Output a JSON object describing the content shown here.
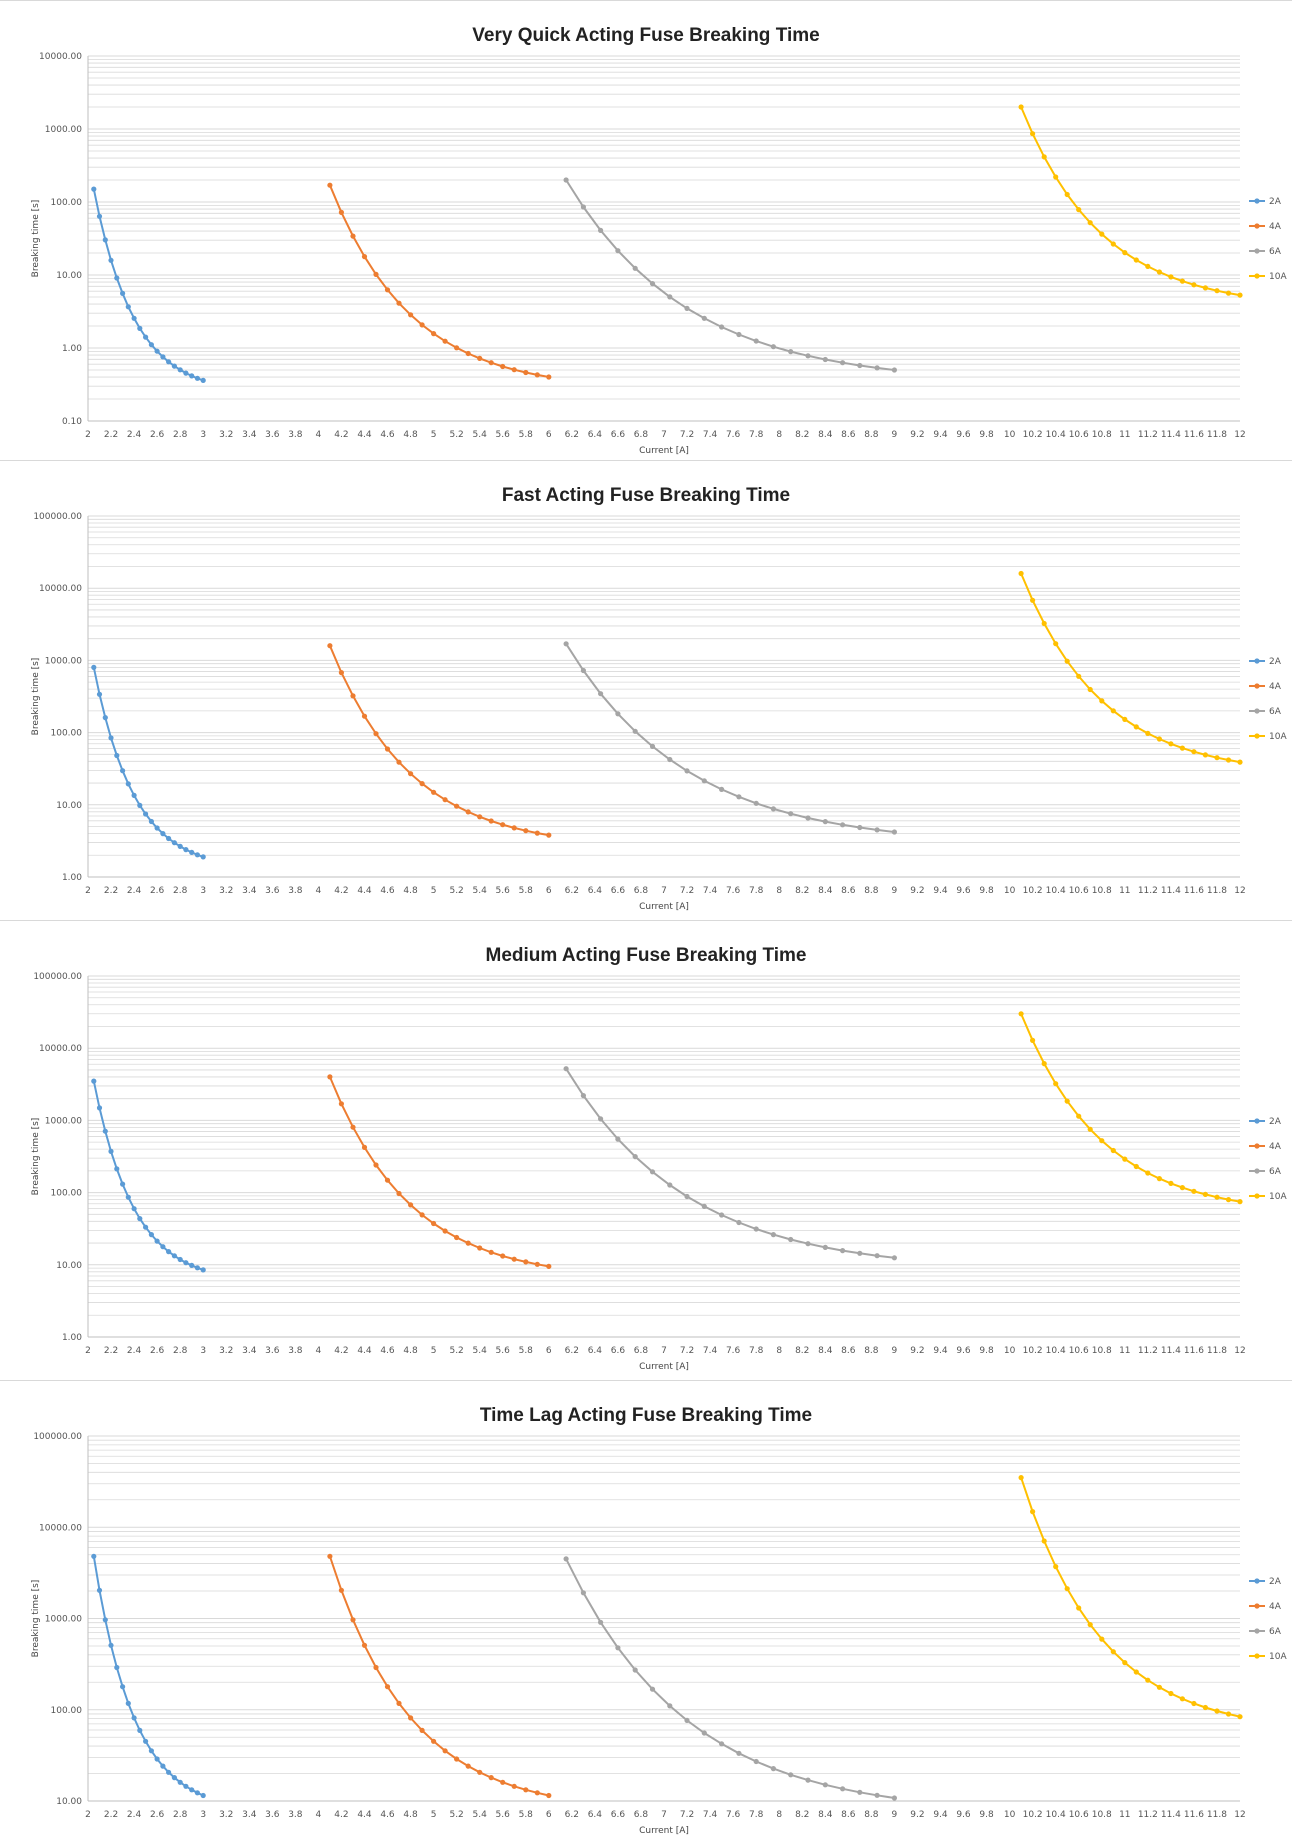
{
  "colors": {
    "2A": "#5b9bd5",
    "4A": "#ed7d31",
    "6A": "#a5a5a5",
    "10A": "#ffc000",
    "grid": "#d9d9d9"
  },
  "chart_data": [
    {
      "type": "line",
      "title": "Very Quick Acting Fuse Breaking Time",
      "xlabel": "Current [A]",
      "ylabel": "Breaking time [s]",
      "yscale": "log",
      "ylim": [
        0.1,
        10000
      ],
      "xlim": [
        2,
        12
      ],
      "yticks": [
        "0.10",
        "1.00",
        "10.00",
        "100.00",
        "1000.00",
        "10000.00"
      ],
      "xticks": [
        "2",
        "2.2",
        "2.4",
        "2.6",
        "2.8",
        "3",
        "3.2",
        "3.4",
        "3.6",
        "3.8",
        "4",
        "4.2",
        "4.4",
        "4.6",
        "4.8",
        "5",
        "5.2",
        "5.4",
        "5.6",
        "5.8",
        "6",
        "6.2",
        "6.4",
        "6.6",
        "6.8",
        "7",
        "7.2",
        "7.4",
        "7.6",
        "7.8",
        "8",
        "8.2",
        "8.4",
        "8.6",
        "8.8",
        "9",
        "9.2",
        "9.4",
        "9.6",
        "9.8",
        "10",
        "10.2",
        "10.4",
        "10.6",
        "10.8",
        "11",
        "11.2",
        "11.4",
        "11.6",
        "11.8",
        "12"
      ],
      "legend_position": "right",
      "grid": true,
      "series": [
        {
          "name": "2A",
          "x_start": 2.05,
          "x_end": 3.0,
          "y_start": 150,
          "y_end": 0.36,
          "points": 20
        },
        {
          "name": "4A",
          "x_start": 4.1,
          "x_end": 6.0,
          "y_start": 170,
          "y_end": 0.4,
          "points": 20
        },
        {
          "name": "6A",
          "x_start": 6.15,
          "x_end": 9.0,
          "y_start": 200,
          "y_end": 0.5,
          "points": 20
        },
        {
          "name": "10A",
          "x_start": 10.1,
          "x_end": 12.0,
          "y_start": 2000,
          "y_end": 5.3,
          "points": 20
        }
      ]
    },
    {
      "type": "line",
      "title": "Fast Acting Fuse Breaking Time",
      "xlabel": "Current [A]",
      "ylabel": "Breaking time [s]",
      "yscale": "log",
      "ylim": [
        1,
        100000
      ],
      "xlim": [
        2,
        12
      ],
      "yticks": [
        "1.00",
        "10.00",
        "100.00",
        "1000.00",
        "10000.00",
        "100000.00"
      ],
      "xticks": [
        "2",
        "2.2",
        "2.4",
        "2.6",
        "2.8",
        "3",
        "3.2",
        "3.4",
        "3.6",
        "3.8",
        "4",
        "4.2",
        "4.4",
        "4.6",
        "4.8",
        "5",
        "5.2",
        "5.4",
        "5.6",
        "5.8",
        "6",
        "6.2",
        "6.4",
        "6.6",
        "6.8",
        "7",
        "7.2",
        "7.4",
        "7.6",
        "7.8",
        "8",
        "8.2",
        "8.4",
        "8.6",
        "8.8",
        "9",
        "9.2",
        "9.4",
        "9.6",
        "9.8",
        "10",
        "10.2",
        "10.4",
        "10.6",
        "10.8",
        "11",
        "11.2",
        "11.4",
        "11.6",
        "11.8",
        "12"
      ],
      "legend_position": "right",
      "grid": true,
      "series": [
        {
          "name": "2A",
          "x_start": 2.05,
          "x_end": 3.0,
          "y_start": 800,
          "y_end": 1.9,
          "points": 20
        },
        {
          "name": "4A",
          "x_start": 4.1,
          "x_end": 6.0,
          "y_start": 1600,
          "y_end": 3.8,
          "points": 20
        },
        {
          "name": "6A",
          "x_start": 6.15,
          "x_end": 9.0,
          "y_start": 1700,
          "y_end": 4.2,
          "points": 20
        },
        {
          "name": "10A",
          "x_start": 10.1,
          "x_end": 12.0,
          "y_start": 16000,
          "y_end": 39,
          "points": 20
        }
      ]
    },
    {
      "type": "line",
      "title": "Medium Acting Fuse Breaking Time",
      "xlabel": "Current [A]",
      "ylabel": "Breaking time [s]",
      "yscale": "log",
      "ylim": [
        1,
        100000
      ],
      "xlim": [
        2,
        12
      ],
      "yticks": [
        "1.00",
        "10.00",
        "100.00",
        "1000.00",
        "10000.00",
        "100000.00"
      ],
      "xticks": [
        "2",
        "2.2",
        "2.4",
        "2.6",
        "2.8",
        "3",
        "3.2",
        "3.4",
        "3.6",
        "3.8",
        "4",
        "4.2",
        "4.4",
        "4.6",
        "4.8",
        "5",
        "5.2",
        "5.4",
        "5.6",
        "5.8",
        "6",
        "6.2",
        "6.4",
        "6.6",
        "6.8",
        "7",
        "7.2",
        "7.4",
        "7.6",
        "7.8",
        "8",
        "8.2",
        "8.4",
        "8.6",
        "8.8",
        "9",
        "9.2",
        "9.4",
        "9.6",
        "9.8",
        "10",
        "10.2",
        "10.4",
        "10.6",
        "10.8",
        "11",
        "11.2",
        "11.4",
        "11.6",
        "11.8",
        "12"
      ],
      "legend_position": "right",
      "grid": true,
      "series": [
        {
          "name": "2A",
          "x_start": 2.05,
          "x_end": 3.0,
          "y_start": 3500,
          "y_end": 8.5,
          "points": 20
        },
        {
          "name": "4A",
          "x_start": 4.1,
          "x_end": 6.0,
          "y_start": 4000,
          "y_end": 9.5,
          "points": 20
        },
        {
          "name": "6A",
          "x_start": 6.15,
          "x_end": 9.0,
          "y_start": 5200,
          "y_end": 12.5,
          "points": 20
        },
        {
          "name": "10A",
          "x_start": 10.1,
          "x_end": 12.0,
          "y_start": 30000,
          "y_end": 75,
          "points": 20
        }
      ]
    },
    {
      "type": "line",
      "title": "Time Lag Acting Fuse Breaking Time",
      "xlabel": "Current [A]",
      "ylabel": "Breaking time [s]",
      "yscale": "log",
      "ylim": [
        10,
        100000
      ],
      "xlim": [
        2,
        12
      ],
      "yticks": [
        "10.00",
        "100.00",
        "1000.00",
        "10000.00",
        "100000.00"
      ],
      "xticks": [
        "2",
        "2.2",
        "2.4",
        "2.6",
        "2.8",
        "3",
        "3.2",
        "3.4",
        "3.6",
        "3.8",
        "4",
        "4.2",
        "4.4",
        "4.6",
        "4.8",
        "5",
        "5.2",
        "5.4",
        "5.6",
        "5.8",
        "6",
        "6.2",
        "6.4",
        "6.6",
        "6.8",
        "7",
        "7.2",
        "7.4",
        "7.6",
        "7.8",
        "8",
        "8.2",
        "8.4",
        "8.6",
        "8.8",
        "9",
        "9.2",
        "9.4",
        "9.6",
        "9.8",
        "10",
        "10.2",
        "10.4",
        "10.6",
        "10.8",
        "11",
        "11.2",
        "11.4",
        "11.6",
        "11.8",
        "12"
      ],
      "legend_position": "right",
      "grid": true,
      "series": [
        {
          "name": "2A",
          "x_start": 2.05,
          "x_end": 3.0,
          "y_start": 4800,
          "y_end": 11.5,
          "points": 20
        },
        {
          "name": "4A",
          "x_start": 4.1,
          "x_end": 6.0,
          "y_start": 4800,
          "y_end": 11.5,
          "points": 20
        },
        {
          "name": "6A",
          "x_start": 6.15,
          "x_end": 9.0,
          "y_start": 4500,
          "y_end": 10.8,
          "points": 20
        },
        {
          "name": "10A",
          "x_start": 10.1,
          "x_end": 12.0,
          "y_start": 35000,
          "y_end": 84,
          "points": 20
        }
      ]
    }
  ]
}
